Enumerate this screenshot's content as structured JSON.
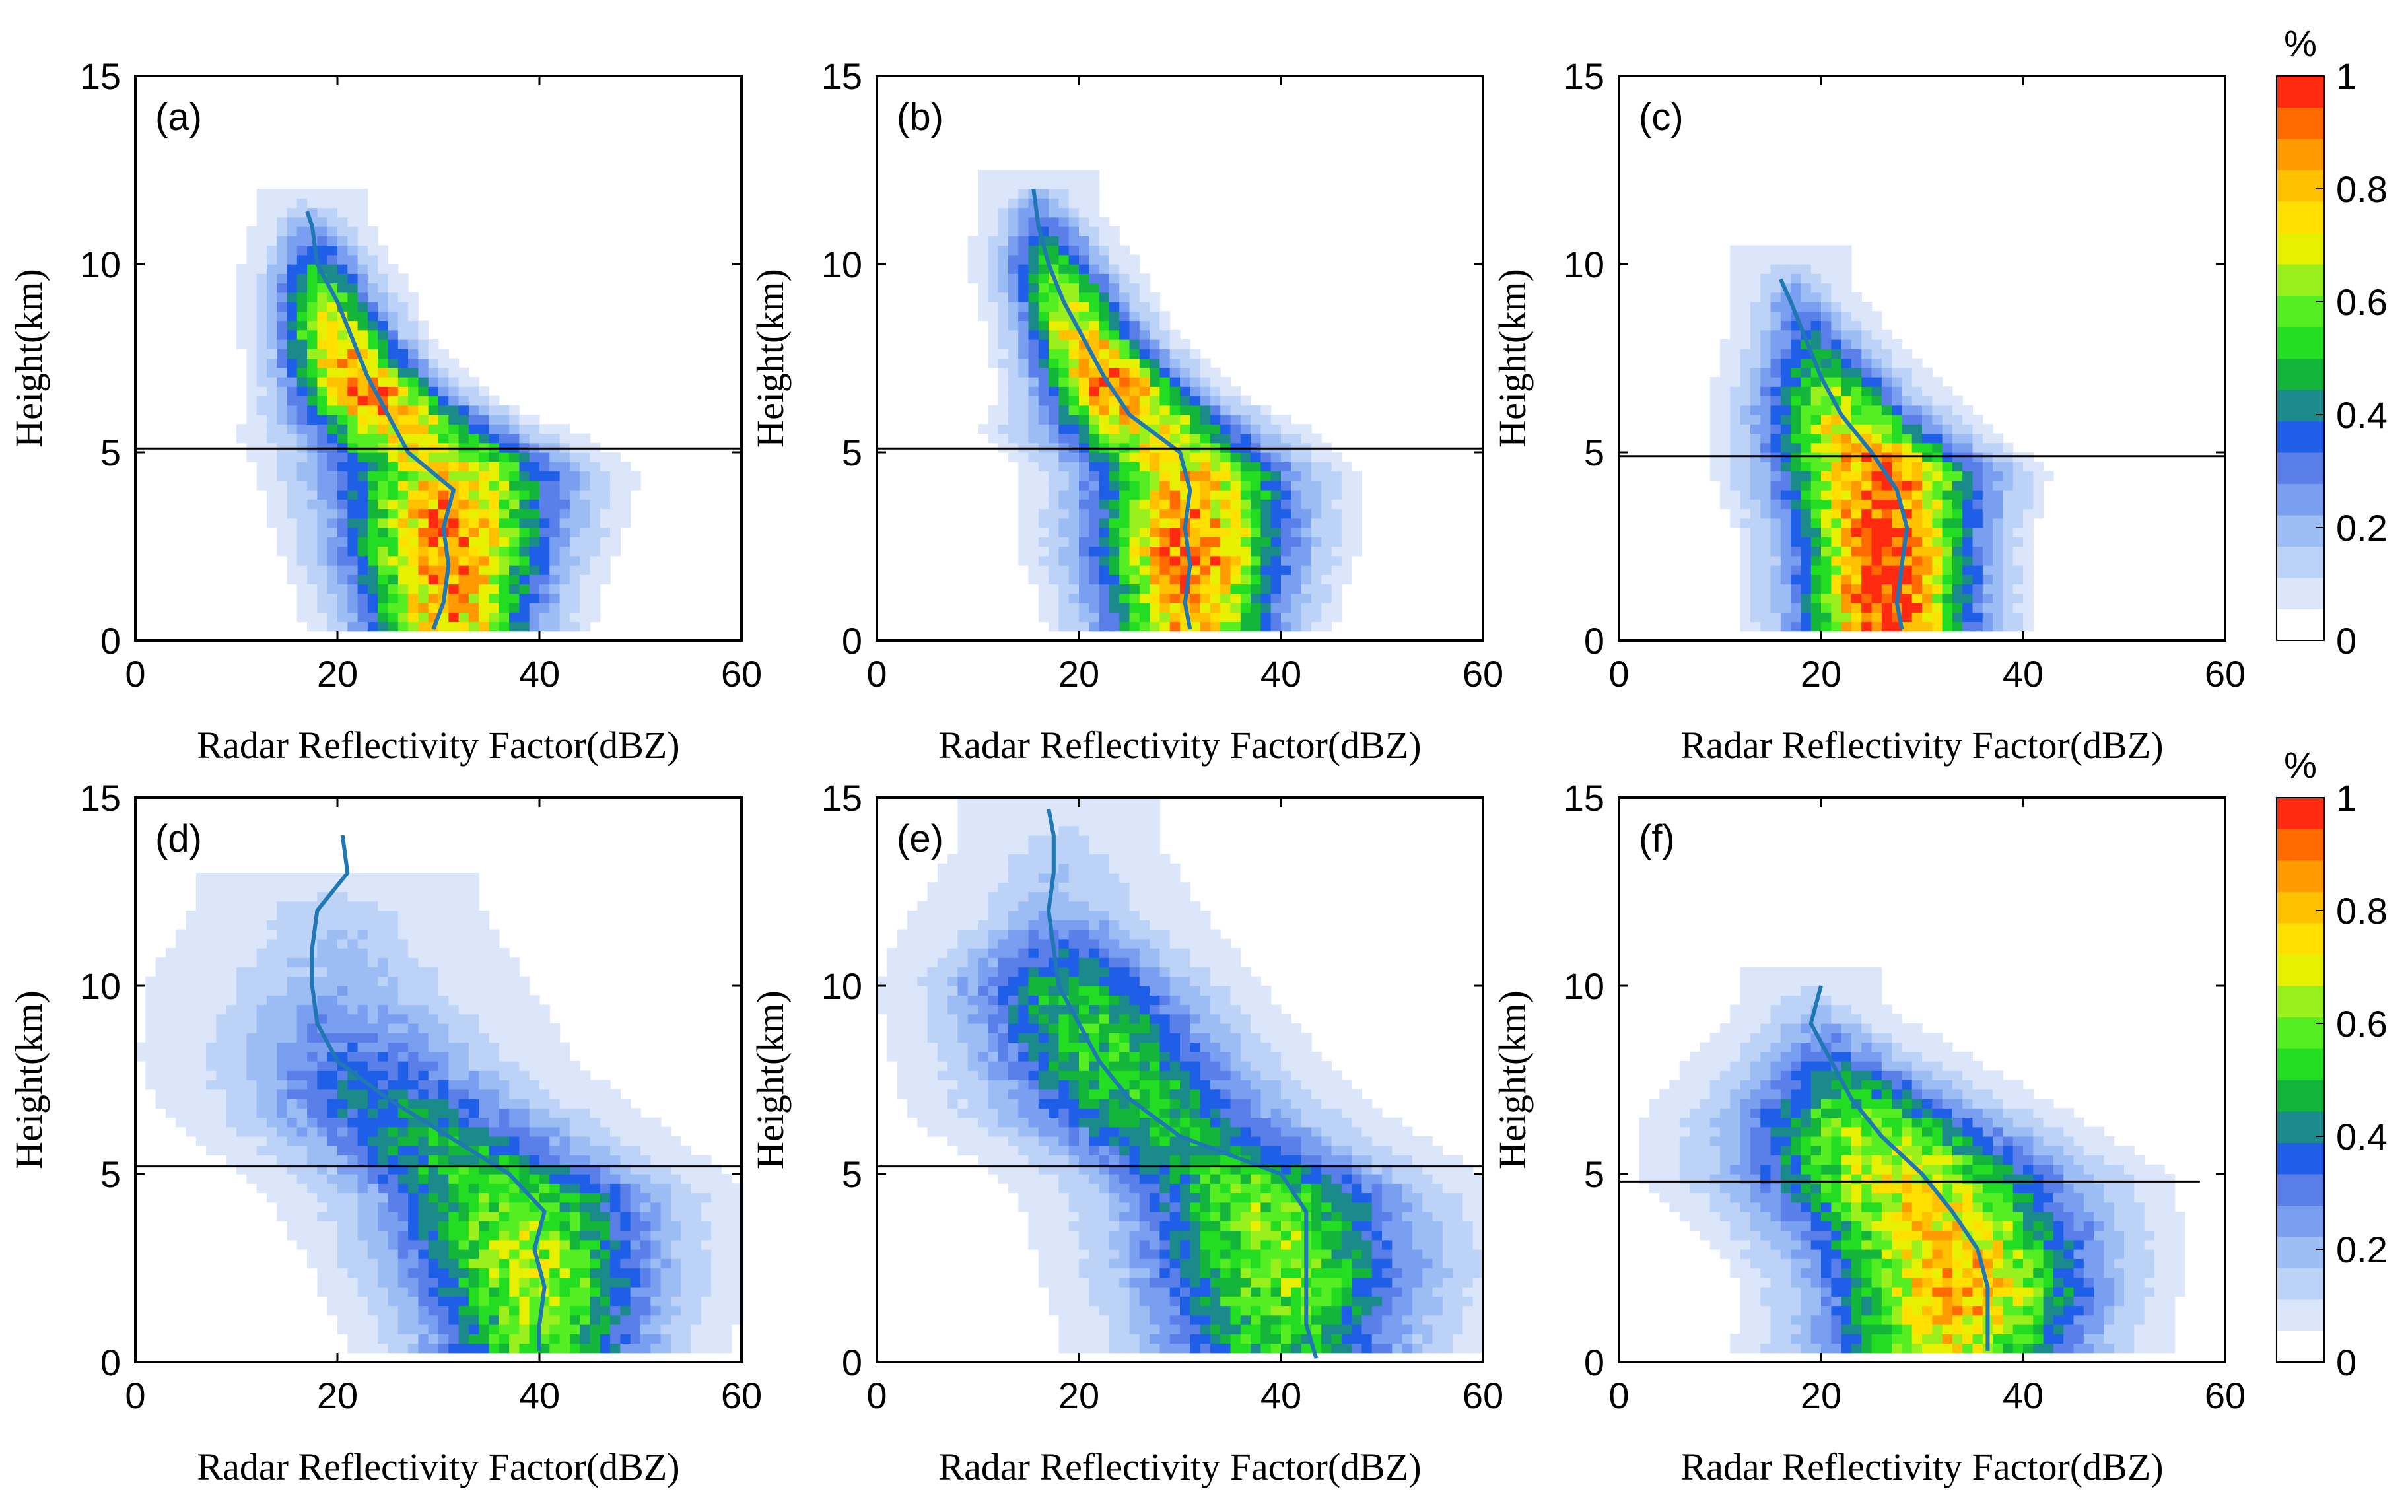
{
  "chart_data": [
    {
      "panel": "(a)",
      "type": "heatmap",
      "xlabel": "Radar Reflectivity Factor(dBZ)",
      "ylabel": "Height(km)",
      "xlim": [
        0,
        60
      ],
      "ylim": [
        0,
        15
      ],
      "xticks": [
        "0",
        "20",
        "40",
        "60"
      ],
      "yticks": [
        "0",
        "5",
        "10",
        "15"
      ],
      "melting_layer_km": 5.1,
      "median_profile": [
        {
          "h": 0.3,
          "z": 29.5
        },
        {
          "h": 1.0,
          "z": 30.5
        },
        {
          "h": 2.0,
          "z": 31.0
        },
        {
          "h": 3.0,
          "z": 30.5
        },
        {
          "h": 4.0,
          "z": 31.5
        },
        {
          "h": 5.0,
          "z": 27.0
        },
        {
          "h": 6.0,
          "z": 25.0
        },
        {
          "h": 7.0,
          "z": 23.0
        },
        {
          "h": 8.0,
          "z": 21.5
        },
        {
          "h": 9.0,
          "z": 20.0
        },
        {
          "h": 10.0,
          "z": 18.0
        },
        {
          "h": 11.0,
          "z": 17.5
        },
        {
          "h": 11.4,
          "z": 17.0
        }
      ],
      "distribution": [
        {
          "h": 0.5,
          "c": 31,
          "w": 6,
          "p": 0.8
        },
        {
          "h": 2.5,
          "c": 31,
          "w": 7,
          "p": 0.9
        },
        {
          "h": 4.5,
          "c": 31,
          "w": 8,
          "p": 0.75
        },
        {
          "h": 5.5,
          "c": 27,
          "w": 7,
          "p": 0.7
        },
        {
          "h": 6.5,
          "c": 23,
          "w": 5,
          "p": 0.95
        },
        {
          "h": 8.0,
          "c": 20,
          "w": 4,
          "p": 0.75
        },
        {
          "h": 9.5,
          "c": 18.5,
          "w": 3.5,
          "p": 0.5
        },
        {
          "h": 11.0,
          "c": 17.5,
          "w": 2.5,
          "p": 0.2
        }
      ]
    },
    {
      "panel": "(b)",
      "type": "heatmap",
      "xlabel": "Radar Reflectivity Factor(dBZ)",
      "ylabel": "Height(km)",
      "xlim": [
        0,
        60
      ],
      "ylim": [
        0,
        15
      ],
      "xticks": [
        "0",
        "20",
        "40",
        "60"
      ],
      "yticks": [
        "0",
        "5",
        "10",
        "15"
      ],
      "melting_layer_km": 5.1,
      "median_profile": [
        {
          "h": 0.3,
          "z": 31.0
        },
        {
          "h": 1.0,
          "z": 30.5
        },
        {
          "h": 2.0,
          "z": 31.0
        },
        {
          "h": 3.0,
          "z": 30.5
        },
        {
          "h": 4.0,
          "z": 31.0
        },
        {
          "h": 5.0,
          "z": 30.0
        },
        {
          "h": 6.0,
          "z": 25.0
        },
        {
          "h": 7.0,
          "z": 22.5
        },
        {
          "h": 8.0,
          "z": 20.5
        },
        {
          "h": 9.0,
          "z": 18.5
        },
        {
          "h": 10.0,
          "z": 17.0
        },
        {
          "h": 11.0,
          "z": 16.0
        },
        {
          "h": 12.0,
          "z": 15.5
        }
      ],
      "distribution": [
        {
          "h": 0.5,
          "c": 31,
          "w": 6,
          "p": 0.8
        },
        {
          "h": 2.5,
          "c": 31,
          "w": 7,
          "p": 0.9
        },
        {
          "h": 4.5,
          "c": 31,
          "w": 7,
          "p": 0.75
        },
        {
          "h": 5.5,
          "c": 27,
          "w": 7,
          "p": 0.7
        },
        {
          "h": 6.5,
          "c": 24,
          "w": 5,
          "p": 0.95
        },
        {
          "h": 8.0,
          "c": 20.5,
          "w": 4,
          "p": 0.8
        },
        {
          "h": 10.0,
          "c": 17.5,
          "w": 3.5,
          "p": 0.5
        },
        {
          "h": 11.5,
          "c": 16,
          "w": 2.5,
          "p": 0.2
        }
      ]
    },
    {
      "panel": "(c)",
      "type": "heatmap",
      "xlabel": "Radar Reflectivity Factor(dBZ)",
      "ylabel": "Height(km)",
      "xlim": [
        0,
        60
      ],
      "ylim": [
        0,
        15
      ],
      "xticks": [
        "0",
        "20",
        "40",
        "60"
      ],
      "yticks": [
        "0",
        "5",
        "10",
        "15"
      ],
      "melting_layer_km": 4.9,
      "median_profile": [
        {
          "h": 0.3,
          "z": 28.0
        },
        {
          "h": 1.0,
          "z": 27.5
        },
        {
          "h": 2.0,
          "z": 28.0
        },
        {
          "h": 3.0,
          "z": 28.5
        },
        {
          "h": 4.0,
          "z": 27.5
        },
        {
          "h": 5.0,
          "z": 25.0
        },
        {
          "h": 6.0,
          "z": 22.0
        },
        {
          "h": 7.0,
          "z": 20.0
        },
        {
          "h": 8.0,
          "z": 18.5
        },
        {
          "h": 9.0,
          "z": 17.0
        },
        {
          "h": 9.6,
          "z": 16.0
        }
      ],
      "distribution": [
        {
          "h": 0.5,
          "c": 26.5,
          "w": 6,
          "p": 1.0
        },
        {
          "h": 2.5,
          "c": 26.5,
          "w": 6,
          "p": 1.0
        },
        {
          "h": 4.5,
          "c": 26,
          "w": 7,
          "p": 0.9
        },
        {
          "h": 5.5,
          "c": 23,
          "w": 6,
          "p": 0.75
        },
        {
          "h": 6.5,
          "c": 21,
          "w": 5,
          "p": 0.6
        },
        {
          "h": 8.0,
          "c": 19,
          "w": 3.5,
          "p": 0.35
        },
        {
          "h": 9.5,
          "c": 17,
          "w": 2.5,
          "p": 0.15
        }
      ]
    },
    {
      "panel": "(d)",
      "type": "heatmap",
      "xlabel": "Radar Reflectivity Factor(dBZ)",
      "ylabel": "Height(km)",
      "xlim": [
        0,
        60
      ],
      "ylim": [
        0,
        15
      ],
      "xticks": [
        "0",
        "20",
        "40",
        "60"
      ],
      "yticks": [
        "0",
        "5",
        "10",
        "15"
      ],
      "melting_layer_km": 5.2,
      "median_profile": [
        {
          "h": 0.3,
          "z": 40.0
        },
        {
          "h": 1.0,
          "z": 40.0
        },
        {
          "h": 2.0,
          "z": 40.5
        },
        {
          "h": 3.0,
          "z": 39.5
        },
        {
          "h": 4.0,
          "z": 40.5
        },
        {
          "h": 5.0,
          "z": 37.0
        },
        {
          "h": 6.0,
          "z": 31.0
        },
        {
          "h": 7.0,
          "z": 25.0
        },
        {
          "h": 8.0,
          "z": 20.0
        },
        {
          "h": 9.0,
          "z": 18.0
        },
        {
          "h": 10.0,
          "z": 17.5
        },
        {
          "h": 11.0,
          "z": 17.5
        },
        {
          "h": 12.0,
          "z": 18.0
        },
        {
          "h": 13.0,
          "z": 21.0
        },
        {
          "h": 14.0,
          "z": 20.5
        }
      ],
      "distribution": [
        {
          "h": 0.5,
          "c": 40,
          "w": 8,
          "p": 0.55
        },
        {
          "h": 2.5,
          "c": 39,
          "w": 9,
          "p": 0.65
        },
        {
          "h": 4.5,
          "c": 37,
          "w": 10,
          "p": 0.55
        },
        {
          "h": 5.5,
          "c": 32,
          "w": 10,
          "p": 0.45
        },
        {
          "h": 6.5,
          "c": 27,
          "w": 10,
          "p": 0.4
        },
        {
          "h": 8.0,
          "c": 22,
          "w": 9,
          "p": 0.3
        },
        {
          "h": 10.0,
          "c": 20,
          "w": 8,
          "p": 0.15
        },
        {
          "h": 12.0,
          "c": 20,
          "w": 6,
          "p": 0.1
        }
      ]
    },
    {
      "panel": "(e)",
      "type": "heatmap",
      "xlabel": "Radar Reflectivity Factor(dBZ)",
      "ylabel": "Height(km)",
      "xlim": [
        0,
        60
      ],
      "ylim": [
        0,
        15
      ],
      "xticks": [
        "0",
        "20",
        "40",
        "60"
      ],
      "yticks": [
        "0",
        "5",
        "10",
        "15"
      ],
      "melting_layer_km": 5.2,
      "median_profile": [
        {
          "h": 0.1,
          "z": 43.5
        },
        {
          "h": 1.0,
          "z": 42.5
        },
        {
          "h": 2.0,
          "z": 42.5
        },
        {
          "h": 3.0,
          "z": 42.5
        },
        {
          "h": 4.0,
          "z": 42.5
        },
        {
          "h": 5.0,
          "z": 40.0
        },
        {
          "h": 6.0,
          "z": 30.0
        },
        {
          "h": 7.0,
          "z": 25.0
        },
        {
          "h": 8.0,
          "z": 22.0
        },
        {
          "h": 9.0,
          "z": 20.0
        },
        {
          "h": 10.0,
          "z": 18.0
        },
        {
          "h": 11.0,
          "z": 17.5
        },
        {
          "h": 12.0,
          "z": 17.0
        },
        {
          "h": 13.0,
          "z": 17.5
        },
        {
          "h": 14.0,
          "z": 17.5
        },
        {
          "h": 14.7,
          "z": 17.0
        }
      ],
      "distribution": [
        {
          "h": 0.5,
          "c": 40,
          "w": 9,
          "p": 0.5
        },
        {
          "h": 2.5,
          "c": 40,
          "w": 10,
          "p": 0.6
        },
        {
          "h": 4.5,
          "c": 38,
          "w": 10,
          "p": 0.55
        },
        {
          "h": 5.5,
          "c": 33,
          "w": 10,
          "p": 0.45
        },
        {
          "h": 6.5,
          "c": 27,
          "w": 10,
          "p": 0.45
        },
        {
          "h": 8.0,
          "c": 23,
          "w": 9,
          "p": 0.5
        },
        {
          "h": 10.0,
          "c": 19,
          "w": 8,
          "p": 0.45
        },
        {
          "h": 12.0,
          "c": 18,
          "w": 6,
          "p": 0.15
        },
        {
          "h": 14.0,
          "c": 18,
          "w": 4,
          "p": 0.08
        }
      ]
    },
    {
      "panel": "(f)",
      "type": "heatmap",
      "xlabel": "Radar Reflectivity Factor(dBZ)",
      "ylabel": "Height(km)",
      "xlim": [
        0,
        60
      ],
      "ylim": [
        0,
        15
      ],
      "xticks": [
        "0",
        "20",
        "40",
        "60"
      ],
      "yticks": [
        "0",
        "5",
        "10",
        "15"
      ],
      "melting_layer_km": 4.8,
      "median_profile": [
        {
          "h": 0.3,
          "z": 36.5
        },
        {
          "h": 1.0,
          "z": 36.5
        },
        {
          "h": 2.0,
          "z": 36.5
        },
        {
          "h": 3.0,
          "z": 35.5
        },
        {
          "h": 4.0,
          "z": 33.0
        },
        {
          "h": 5.0,
          "z": 30.0
        },
        {
          "h": 6.0,
          "z": 26.0
        },
        {
          "h": 7.0,
          "z": 23.0
        },
        {
          "h": 8.0,
          "z": 21.0
        },
        {
          "h": 9.0,
          "z": 19.0
        },
        {
          "h": 10.0,
          "z": 20.0
        }
      ],
      "distribution": [
        {
          "h": 0.5,
          "c": 33,
          "w": 9,
          "p": 0.7
        },
        {
          "h": 2.0,
          "c": 34,
          "w": 9,
          "p": 0.85
        },
        {
          "h": 3.5,
          "c": 32,
          "w": 10,
          "p": 0.75
        },
        {
          "h": 5.0,
          "c": 28,
          "w": 11,
          "p": 0.7
        },
        {
          "h": 6.5,
          "c": 24,
          "w": 9,
          "p": 0.55
        },
        {
          "h": 8.0,
          "c": 21,
          "w": 6,
          "p": 0.3
        },
        {
          "h": 9.5,
          "c": 19,
          "w": 3,
          "p": 0.1
        }
      ]
    }
  ],
  "colorbars": [
    {
      "unit": "%",
      "ticks": [
        "0",
        "0.2",
        "0.4",
        "0.6",
        "0.8",
        "1"
      ],
      "range": [
        0,
        1
      ]
    },
    {
      "unit": "%",
      "ticks": [
        "0",
        "0.2",
        "0.4",
        "0.6",
        "0.8",
        "1"
      ],
      "range": [
        0,
        1
      ]
    }
  ],
  "colors": {
    "profile_line": "#1f78b4",
    "colormap": [
      "#ffffff",
      "#dce6fa",
      "#bcd2f7",
      "#9cbcf4",
      "#7b9ff0",
      "#5a7fe8",
      "#1f5fe8",
      "#1a8a8a",
      "#13b53a",
      "#22dd22",
      "#55ee22",
      "#9af01c",
      "#e6f000",
      "#ffe000",
      "#ffc000",
      "#ff9a00",
      "#ff6a00",
      "#ff2a10"
    ]
  }
}
